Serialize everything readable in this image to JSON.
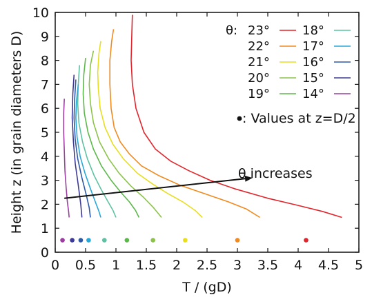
{
  "chart_data": {
    "type": "line",
    "title": "",
    "xlabel": "T / (gD)",
    "ylabel": "Height z (in grain diameters D)",
    "xlim": [
      0,
      5
    ],
    "ylim": [
      0,
      10
    ],
    "xticks": [
      "0",
      "0.5",
      "1",
      "1.5",
      "2",
      "2.5",
      "3",
      "3.5",
      "4",
      "4.5",
      "5"
    ],
    "yticks": [
      "0",
      "1",
      "2",
      "3",
      "4",
      "5",
      "6",
      "7",
      "8",
      "9",
      "10"
    ],
    "grid": false,
    "legend_title": "θ:",
    "legend_position": "top-right",
    "series": [
      {
        "name": "23°",
        "color": "#e0262c",
        "x": [
          1.27,
          1.26,
          1.25,
          1.27,
          1.33,
          1.46,
          1.65,
          1.9,
          2.2,
          2.55,
          2.95,
          3.5,
          4.0,
          4.4,
          4.72
        ],
        "y": [
          9.9,
          9.0,
          8.0,
          7.0,
          6.0,
          5.0,
          4.3,
          3.8,
          3.4,
          3.0,
          2.65,
          2.25,
          1.95,
          1.7,
          1.45
        ],
        "z_half": 4.13
      },
      {
        "name": "22°",
        "color": "#f08a1e",
        "x": [
          0.96,
          0.93,
          0.9,
          0.9,
          0.92,
          0.97,
          1.07,
          1.22,
          1.42,
          1.7,
          2.05,
          2.45,
          2.85,
          3.15,
          3.37
        ],
        "y": [
          9.3,
          8.8,
          8.0,
          7.0,
          6.0,
          5.2,
          4.6,
          4.1,
          3.6,
          3.2,
          2.8,
          2.45,
          2.1,
          1.8,
          1.45
        ],
        "z_half": 3.0
      },
      {
        "name": "21°",
        "color": "#e8de20",
        "x": [
          0.75,
          0.72,
          0.7,
          0.71,
          0.74,
          0.82,
          0.95,
          1.12,
          1.35,
          1.6,
          1.85,
          2.1,
          2.3,
          2.42
        ],
        "y": [
          8.8,
          8.3,
          7.5,
          6.8,
          6.0,
          5.2,
          4.5,
          3.9,
          3.3,
          2.85,
          2.45,
          2.1,
          1.75,
          1.45
        ],
        "z_half": 2.14
      },
      {
        "name": "20°",
        "color": "#8bc34a",
        "x": [
          0.63,
          0.58,
          0.56,
          0.58,
          0.63,
          0.73,
          0.88,
          1.05,
          1.25,
          1.45,
          1.62,
          1.75
        ],
        "y": [
          8.4,
          7.8,
          7.0,
          6.2,
          5.4,
          4.6,
          3.9,
          3.3,
          2.75,
          2.3,
          1.85,
          1.45
        ],
        "z_half": 1.61
      },
      {
        "name": "19°",
        "color": "#5cb84a",
        "x": [
          0.5,
          0.47,
          0.46,
          0.48,
          0.54,
          0.63,
          0.76,
          0.92,
          1.08,
          1.22,
          1.32,
          1.38
        ],
        "y": [
          8.1,
          7.4,
          6.6,
          5.8,
          5.0,
          4.3,
          3.6,
          3.0,
          2.5,
          2.1,
          1.75,
          1.45
        ],
        "z_half": 1.18
      },
      {
        "name": "18°",
        "color": "#5ec2a2",
        "x": [
          0.4,
          0.38,
          0.37,
          0.39,
          0.45,
          0.53,
          0.64,
          0.76,
          0.87,
          0.95,
          1.0
        ],
        "y": [
          7.8,
          7.0,
          6.2,
          5.4,
          4.6,
          3.9,
          3.2,
          2.6,
          2.1,
          1.75,
          1.45
        ],
        "z_half": 0.81
      },
      {
        "name": "17°",
        "color": "#29a8d8",
        "x": [
          0.38,
          0.35,
          0.34,
          0.36,
          0.41,
          0.49,
          0.58,
          0.66,
          0.72,
          0.75
        ],
        "y": [
          7.0,
          6.3,
          5.6,
          4.8,
          4.0,
          3.3,
          2.65,
          2.1,
          1.7,
          1.45
        ],
        "z_half": 0.55
      },
      {
        "name": "16°",
        "color": "#2d59a6",
        "x": [
          0.34,
          0.32,
          0.31,
          0.33,
          0.37,
          0.44,
          0.51,
          0.56,
          0.58
        ],
        "y": [
          7.2,
          6.4,
          5.6,
          4.7,
          3.9,
          3.1,
          2.4,
          1.85,
          1.45
        ],
        "z_half": 0.42
      },
      {
        "name": "15°",
        "color": "#3c3a92",
        "x": [
          0.31,
          0.29,
          0.28,
          0.3,
          0.33,
          0.38,
          0.42,
          0.44
        ],
        "y": [
          7.4,
          6.6,
          5.6,
          4.6,
          3.7,
          2.8,
          2.0,
          1.45
        ],
        "z_half": 0.28
      },
      {
        "name": "14°",
        "color": "#9a3fa0",
        "x": [
          0.15,
          0.14,
          0.14,
          0.15,
          0.16,
          0.18,
          0.2,
          0.22,
          0.23
        ],
        "y": [
          6.4,
          5.8,
          5.0,
          4.2,
          3.4,
          2.7,
          2.1,
          1.7,
          1.45
        ],
        "z_half": 0.12
      }
    ],
    "annotations": {
      "z_half_label": ": Values at z=D/2",
      "z_half_y": 0.5,
      "arrow_label": "θ increases",
      "arrow_from": [
        0.15,
        2.25
      ],
      "arrow_to": [
        3.25,
        3.1
      ]
    }
  }
}
